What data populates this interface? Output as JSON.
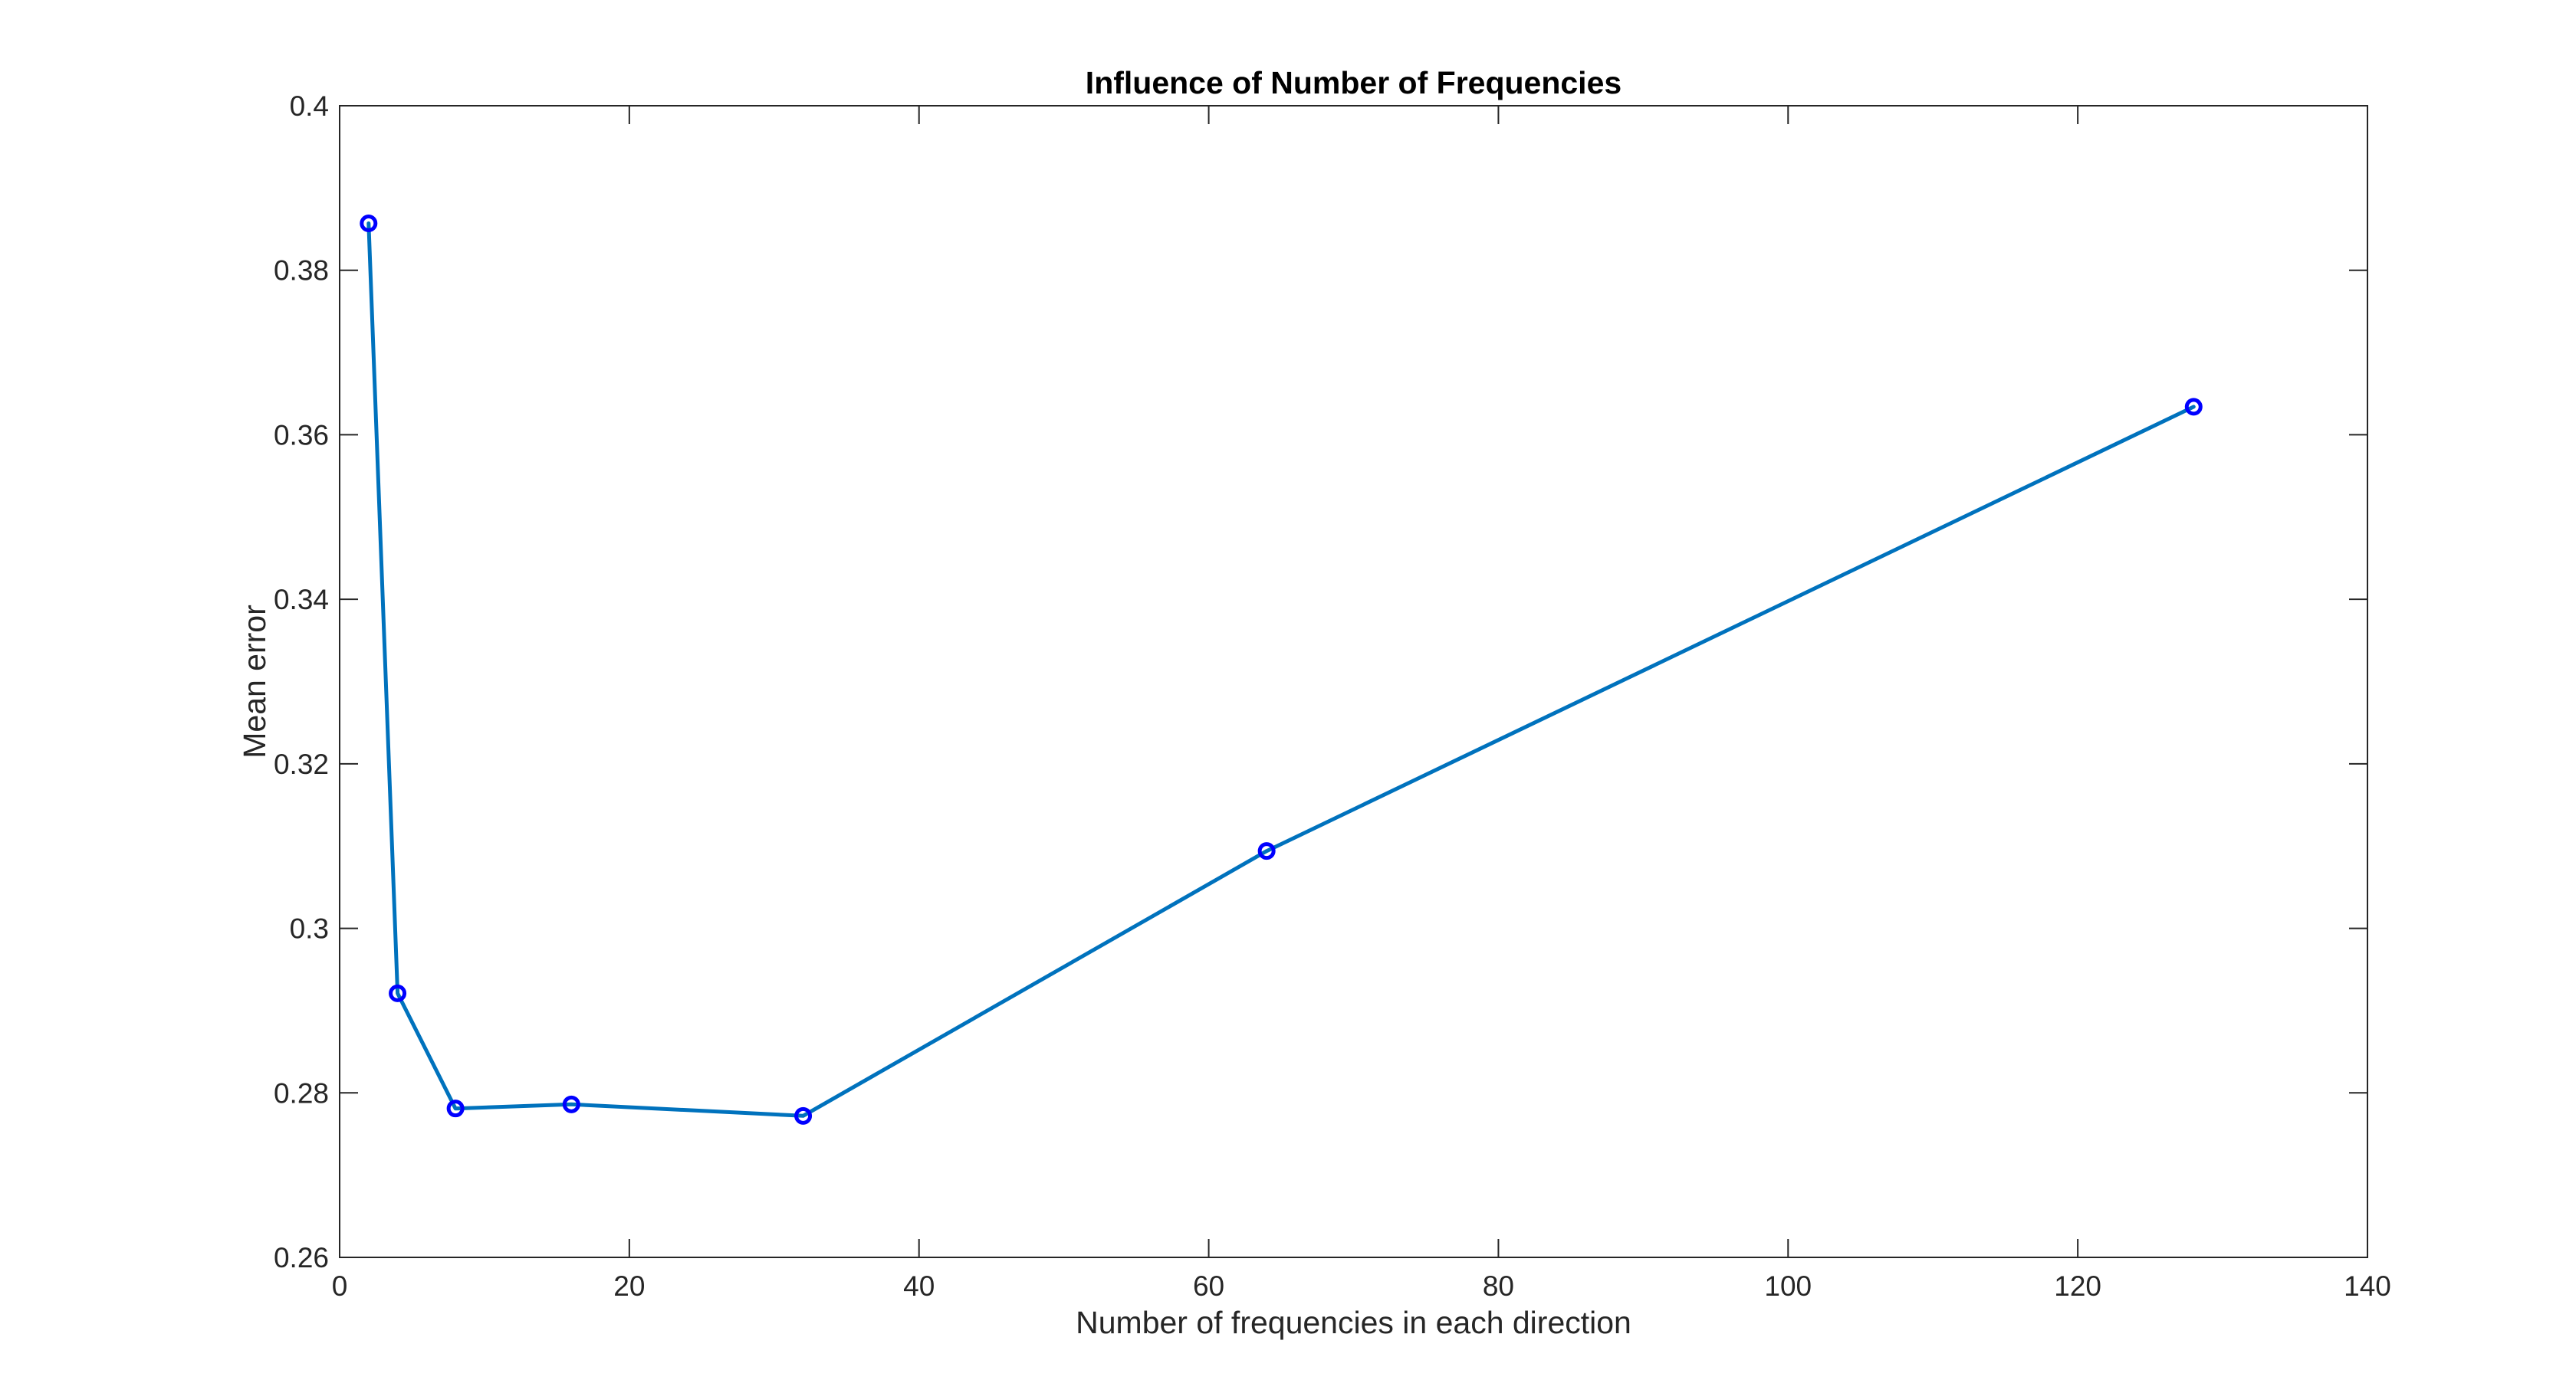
{
  "chart_data": {
    "type": "line",
    "title": "Influence of Number of Frequencies",
    "xlabel": "Number of frequencies in each direction",
    "ylabel": "Mean error",
    "xlim": [
      0,
      140
    ],
    "ylim": [
      0.26,
      0.4
    ],
    "xticks": [
      0,
      20,
      40,
      60,
      80,
      100,
      120,
      140
    ],
    "xtick_labels": [
      "0",
      "20",
      "40",
      "60",
      "80",
      "100",
      "120",
      "140"
    ],
    "yticks": [
      0.26,
      0.28,
      0.3,
      0.32,
      0.34,
      0.36,
      0.38,
      0.4
    ],
    "ytick_labels": [
      "0.26",
      "0.28",
      "0.3",
      "0.32",
      "0.34",
      "0.36",
      "0.38",
      "0.4"
    ],
    "grid": false,
    "series": [
      {
        "x": [
          2,
          4,
          8,
          16,
          32,
          64,
          128
        ],
        "y": [
          0.3857,
          0.2921,
          0.2781,
          0.2786,
          0.2772,
          0.3094,
          0.3634
        ],
        "line_color": "#0072BD",
        "marker": "circle",
        "marker_color": "#0000FF"
      }
    ]
  }
}
